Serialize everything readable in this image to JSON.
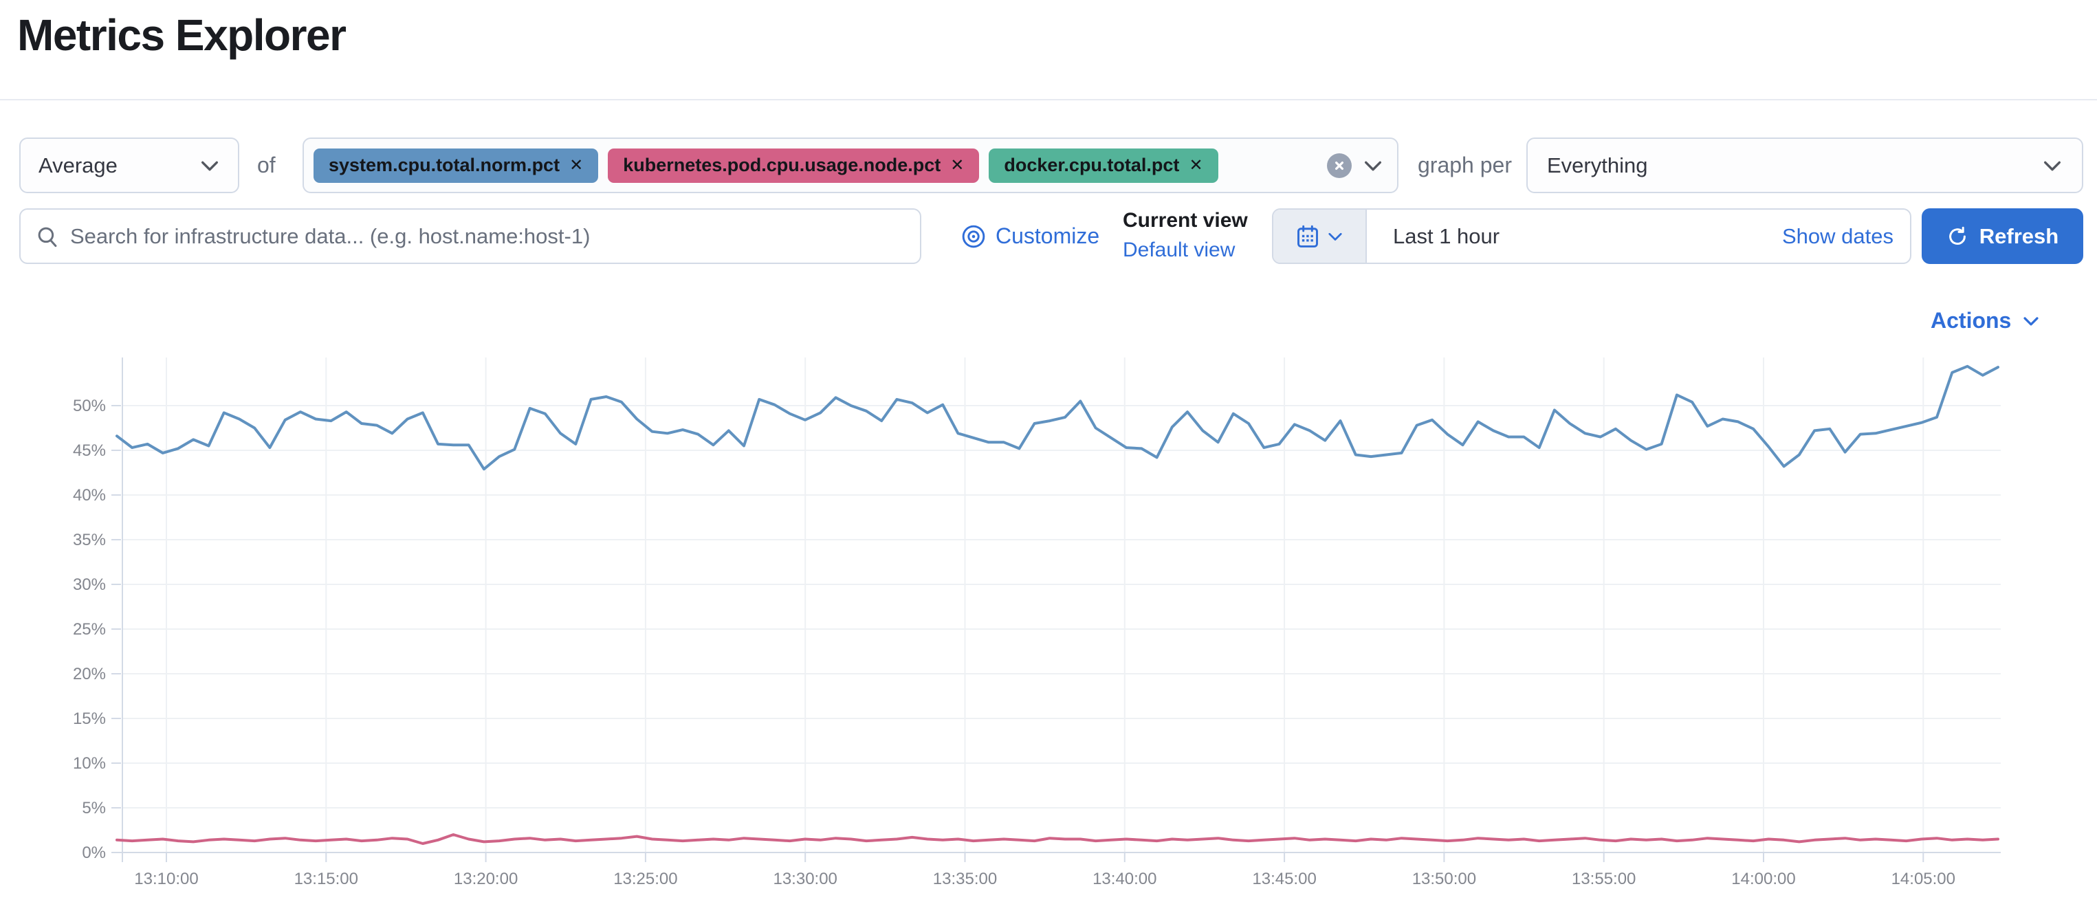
{
  "page": {
    "title": "Metrics Explorer"
  },
  "toolbar": {
    "aggregation_value": "Average",
    "of_label": "of",
    "metrics": [
      {
        "label": "system.cpu.total.norm.pct",
        "color": "#6092c0"
      },
      {
        "label": "kubernetes.pod.cpu.usage.node.pct",
        "color": "#d36086"
      },
      {
        "label": "docker.cpu.total.pct",
        "color": "#54b399"
      }
    ],
    "remove_glyph": "✕",
    "graph_per_label": "graph per",
    "group_by_value": "Everything"
  },
  "search": {
    "placeholder": "Search for infrastructure data... (e.g. host.name:host-1)"
  },
  "view_controls": {
    "customize_label": "Customize",
    "current_view_label": "Current view",
    "default_view_label": "Default view"
  },
  "time_picker": {
    "range_label": "Last 1 hour",
    "show_dates_label": "Show dates",
    "refresh_label": "Refresh"
  },
  "actions_label": "Actions",
  "colors": {
    "primary": "#2f6dd8",
    "series_blue": "#6092c0",
    "series_pink": "#cf6386",
    "grid": "#eef1f4",
    "axis": "#d3dae6",
    "tick_label": "#83868e"
  },
  "chart_data": {
    "type": "line",
    "title": "",
    "xlabel": "",
    "ylabel": "",
    "y_ticks_pct": [
      0,
      5,
      10,
      15,
      20,
      25,
      30,
      35,
      40,
      45,
      50
    ],
    "ylim": [
      0,
      55.5
    ],
    "x_tick_labels": [
      "13:10:00",
      "13:15:00",
      "13:20:00",
      "13:25:00",
      "13:30:00",
      "13:35:00",
      "13:40:00",
      "13:45:00",
      "13:50:00",
      "13:55:00",
      "14:00:00",
      "14:05:00"
    ],
    "x_start_approx": "13:08:30",
    "sample_interval_seconds": 30,
    "grid": true,
    "legend": "none",
    "series": [
      {
        "name": "system.cpu.total.norm.pct (Average)",
        "color": "#6092c0",
        "unit": "%",
        "values": [
          46.6,
          45.3,
          45.7,
          44.7,
          45.2,
          46.2,
          45.5,
          49.2,
          48.5,
          47.5,
          45.3,
          48.4,
          49.3,
          48.5,
          48.3,
          49.3,
          48.0,
          47.8,
          46.9,
          48.5,
          49.2,
          45.7,
          45.6,
          45.6,
          42.9,
          44.3,
          45.1,
          49.7,
          49.1,
          46.9,
          45.7,
          50.7,
          51.0,
          50.4,
          48.5,
          47.1,
          46.9,
          47.3,
          46.8,
          45.6,
          47.2,
          45.5,
          50.7,
          50.1,
          49.1,
          48.4,
          49.2,
          50.9,
          50.0,
          49.4,
          48.3,
          50.7,
          50.3,
          49.2,
          50.1,
          46.9,
          46.4,
          45.9,
          45.9,
          45.2,
          48.0,
          48.3,
          48.7,
          50.5,
          47.5,
          46.4,
          45.3,
          45.2,
          44.2,
          47.6,
          49.3,
          47.2,
          45.9,
          49.1,
          48.0,
          45.3,
          45.7,
          47.9,
          47.2,
          46.1,
          48.3,
          44.5,
          44.3,
          44.5,
          44.7,
          47.8,
          48.4,
          46.8,
          45.6,
          48.2,
          47.2,
          46.5,
          46.5,
          45.3,
          49.5,
          48.0,
          46.9,
          46.5,
          47.4,
          46.1,
          45.1,
          45.7,
          51.2,
          50.4,
          47.7,
          48.5,
          48.2,
          47.4,
          45.4,
          43.2,
          44.5,
          47.2,
          47.4,
          44.8,
          46.8,
          46.9,
          47.3,
          47.7,
          48.1,
          48.7,
          53.7,
          54.4,
          53.4,
          54.3
        ]
      },
      {
        "name": "kubernetes.pod.cpu.usage.node.pct (Average)",
        "color": "#cf6386",
        "unit": "%",
        "values": [
          1.4,
          1.3,
          1.4,
          1.5,
          1.3,
          1.2,
          1.4,
          1.5,
          1.4,
          1.3,
          1.5,
          1.6,
          1.4,
          1.3,
          1.4,
          1.5,
          1.3,
          1.4,
          1.6,
          1.5,
          1.0,
          1.4,
          2.0,
          1.5,
          1.2,
          1.3,
          1.5,
          1.6,
          1.4,
          1.5,
          1.3,
          1.4,
          1.5,
          1.6,
          1.8,
          1.5,
          1.4,
          1.3,
          1.4,
          1.5,
          1.4,
          1.6,
          1.5,
          1.4,
          1.3,
          1.5,
          1.4,
          1.6,
          1.5,
          1.3,
          1.4,
          1.5,
          1.7,
          1.5,
          1.4,
          1.5,
          1.3,
          1.4,
          1.5,
          1.4,
          1.3,
          1.6,
          1.5,
          1.5,
          1.3,
          1.4,
          1.5,
          1.4,
          1.3,
          1.5,
          1.4,
          1.5,
          1.6,
          1.4,
          1.3,
          1.4,
          1.5,
          1.6,
          1.4,
          1.5,
          1.4,
          1.3,
          1.5,
          1.4,
          1.6,
          1.5,
          1.4,
          1.3,
          1.4,
          1.6,
          1.5,
          1.4,
          1.5,
          1.3,
          1.4,
          1.5,
          1.6,
          1.4,
          1.3,
          1.5,
          1.4,
          1.5,
          1.3,
          1.4,
          1.6,
          1.5,
          1.4,
          1.3,
          1.5,
          1.4,
          1.2,
          1.4,
          1.5,
          1.6,
          1.4,
          1.5,
          1.4,
          1.3,
          1.5,
          1.6,
          1.4,
          1.5,
          1.4,
          1.5
        ]
      }
    ]
  }
}
